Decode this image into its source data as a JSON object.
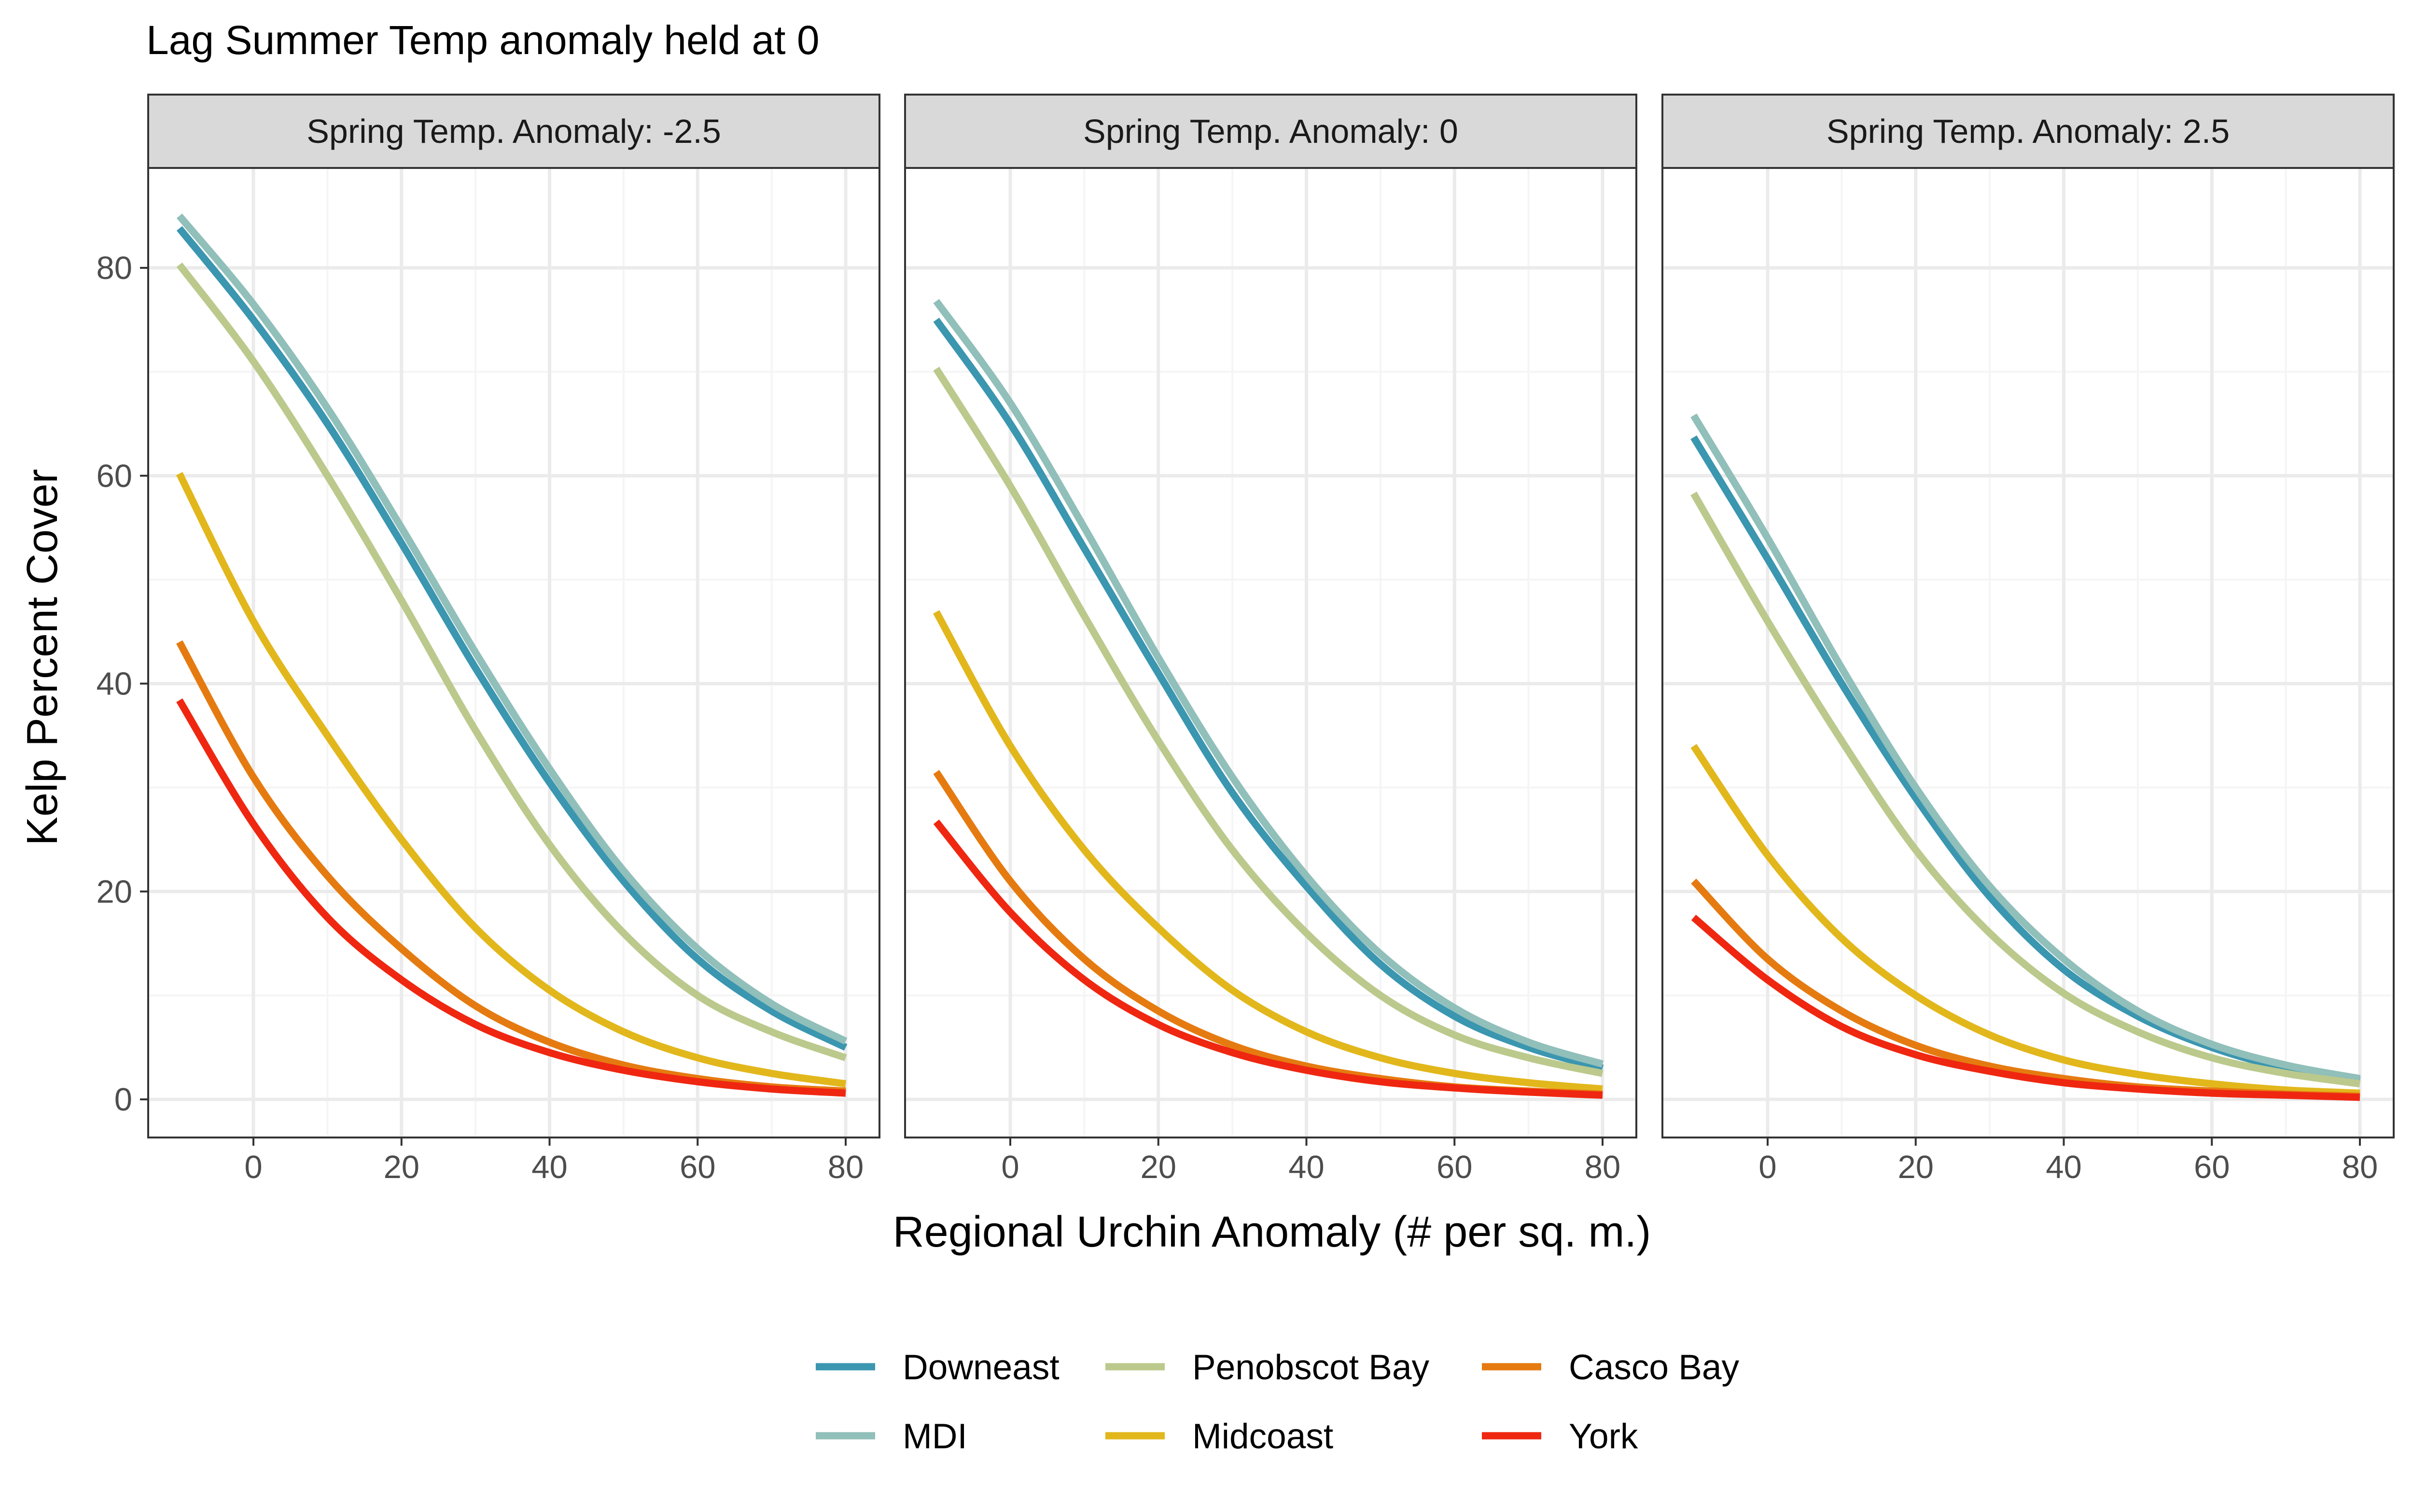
{
  "chart_data": {
    "type": "line",
    "title": "Lag Summer Temp anomaly held at 0",
    "xlabel": "Regional Urchin Anomaly (# per sq. m.)",
    "ylabel": "Kelp Percent Cover",
    "xlim": [
      -10,
      80
    ],
    "ylim": [
      0,
      85
    ],
    "xticks": [
      0,
      20,
      40,
      60,
      80
    ],
    "yticks": [
      0,
      20,
      40,
      60,
      80
    ],
    "grid": true,
    "legend_position": "bottom",
    "x": [
      -10,
      0,
      10,
      20,
      30,
      40,
      50,
      60,
      70,
      80
    ],
    "panels": [
      {
        "label": "Spring Temp. Anomaly: -2.5",
        "series": [
          {
            "name": "Downeast",
            "color": "#3b96b0",
            "values": [
              83.8,
              75.0,
              65.0,
              53.5,
              41.5,
              30.5,
              21.0,
              13.5,
              8.5,
              5.0
            ]
          },
          {
            "name": "MDI",
            "color": "#91bfba",
            "values": [
              85.0,
              76.5,
              66.5,
              55.0,
              43.0,
              31.8,
              22.0,
              14.5,
              9.2,
              5.6
            ]
          },
          {
            "name": "Penobscot Bay",
            "color": "#bbc98c",
            "values": [
              80.3,
              71.0,
              60.0,
              48.0,
              35.5,
              24.5,
              16.0,
              10.0,
              6.5,
              4.0
            ]
          },
          {
            "name": "Midcoast",
            "color": "#e2b71c",
            "values": [
              60.2,
              46.0,
              35.0,
              25.0,
              16.5,
              10.5,
              6.5,
              4.0,
              2.5,
              1.5
            ]
          },
          {
            "name": "Casco Bay",
            "color": "#e57b10",
            "values": [
              44.0,
              31.0,
              21.5,
              14.5,
              9.0,
              5.5,
              3.3,
              2.0,
              1.2,
              0.8
            ]
          },
          {
            "name": "York",
            "color": "#ef2711",
            "values": [
              38.4,
              26.5,
              17.5,
              11.5,
              7.2,
              4.5,
              2.8,
              1.7,
              1.0,
              0.6
            ]
          }
        ]
      },
      {
        "label": "Spring Temp. Anomaly: 0",
        "series": [
          {
            "name": "Downeast",
            "color": "#3b96b0",
            "values": [
              75.0,
              65.0,
              53.0,
              41.0,
              29.5,
              20.5,
              13.0,
              8.0,
              5.0,
              3.0
            ]
          },
          {
            "name": "MDI",
            "color": "#91bfba",
            "values": [
              76.8,
              67.0,
              55.0,
              42.5,
              31.0,
              21.5,
              14.0,
              8.8,
              5.5,
              3.4
            ]
          },
          {
            "name": "Penobscot Bay",
            "color": "#bbc98c",
            "values": [
              70.3,
              59.0,
              46.5,
              34.5,
              24.0,
              16.0,
              10.0,
              6.2,
              4.0,
              2.5
            ]
          },
          {
            "name": "Midcoast",
            "color": "#e2b71c",
            "values": [
              46.9,
              34.0,
              24.0,
              16.5,
              10.5,
              6.5,
              4.0,
              2.5,
              1.6,
              1.0
            ]
          },
          {
            "name": "Casco Bay",
            "color": "#e57b10",
            "values": [
              31.5,
              21.0,
              13.5,
              8.5,
              5.2,
              3.2,
              2.0,
              1.2,
              0.8,
              0.5
            ]
          },
          {
            "name": "York",
            "color": "#ef2711",
            "values": [
              26.7,
              18.0,
              11.5,
              7.2,
              4.5,
              2.8,
              1.7,
              1.1,
              0.7,
              0.4
            ]
          }
        ]
      },
      {
        "label": "Spring Temp. Anomaly: 2.5",
        "series": [
          {
            "name": "Downeast",
            "color": "#3b96b0",
            "values": [
              63.7,
              52.0,
              40.0,
              29.0,
              19.5,
              12.5,
              8.0,
              5.0,
              3.0,
              1.8
            ]
          },
          {
            "name": "MDI",
            "color": "#91bfba",
            "values": [
              65.8,
              54.0,
              41.5,
              30.0,
              20.5,
              13.5,
              8.5,
              5.3,
              3.3,
              2.0
            ]
          },
          {
            "name": "Penobscot Bay",
            "color": "#bbc98c",
            "values": [
              58.3,
              46.0,
              34.5,
              24.0,
              16.0,
              10.2,
              6.5,
              4.0,
              2.5,
              1.5
            ]
          },
          {
            "name": "Midcoast",
            "color": "#e2b71c",
            "values": [
              34.0,
              23.5,
              15.5,
              10.0,
              6.2,
              3.8,
              2.4,
              1.5,
              0.9,
              0.6
            ]
          },
          {
            "name": "Casco Bay",
            "color": "#e57b10",
            "values": [
              21.0,
              13.5,
              8.5,
              5.2,
              3.2,
              2.0,
              1.2,
              0.8,
              0.5,
              0.3
            ]
          },
          {
            "name": "York",
            "color": "#ef2711",
            "values": [
              17.5,
              11.5,
              7.0,
              4.3,
              2.7,
              1.6,
              1.0,
              0.6,
              0.4,
              0.2
            ]
          }
        ]
      }
    ],
    "legend": [
      {
        "name": "Downeast",
        "color": "#3b96b0"
      },
      {
        "name": "MDI",
        "color": "#91bfba"
      },
      {
        "name": "Penobscot Bay",
        "color": "#bbc98c"
      },
      {
        "name": "Midcoast",
        "color": "#e2b71c"
      },
      {
        "name": "Casco Bay",
        "color": "#e57b10"
      },
      {
        "name": "York",
        "color": "#ef2711"
      }
    ],
    "colors": {
      "strip_background": "#d9d9d9",
      "grid_major": "#ebebeb",
      "grid_minor": "#f5f5f5",
      "panel_border": "#333333"
    }
  }
}
